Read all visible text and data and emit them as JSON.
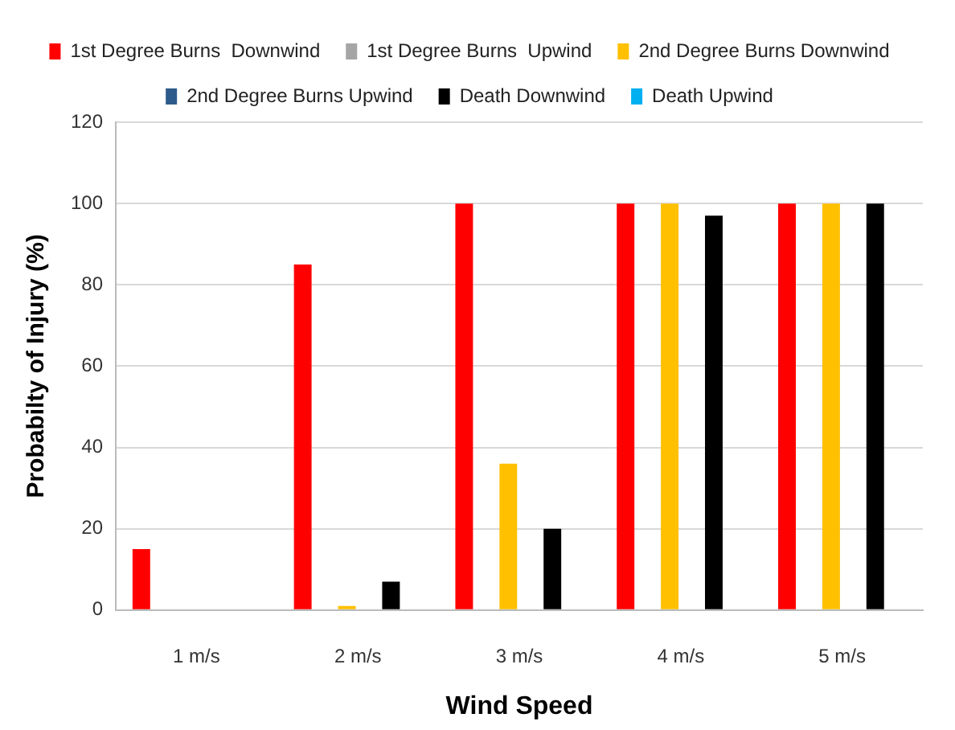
{
  "chart_data": {
    "type": "bar",
    "xlabel": "Wind Speed",
    "ylabel": "Probabilty of Injury (%)",
    "categories": [
      "1 m/s",
      "2 m/s",
      "3 m/s",
      "4 m/s",
      "5 m/s"
    ],
    "series": [
      {
        "name": "1st Degree Burns  Downwind",
        "color": "#ff0000",
        "values": [
          15,
          85,
          100,
          100,
          100
        ]
      },
      {
        "name": "1st Degree Burns  Upwind",
        "color": "#a5a5a5",
        "values": [
          0,
          0,
          0,
          0,
          0
        ]
      },
      {
        "name": "2nd Degree Burns Downwind",
        "color": "#ffc000",
        "values": [
          0,
          1,
          36,
          100,
          100
        ]
      },
      {
        "name": "2nd Degree Burns Upwind",
        "color": "#2e5c8a",
        "values": [
          0,
          0,
          0,
          0,
          0
        ]
      },
      {
        "name": "Death Downwind",
        "color": "#000000",
        "values": [
          0,
          7,
          20,
          97,
          100
        ]
      },
      {
        "name": "Death Upwind",
        "color": "#00b0f0",
        "values": [
          0,
          0,
          0,
          0,
          0
        ]
      }
    ],
    "ylim": [
      0,
      120
    ],
    "yticks": [
      0,
      20,
      40,
      60,
      80,
      100,
      120
    ],
    "grid": "y",
    "legend": "top"
  }
}
